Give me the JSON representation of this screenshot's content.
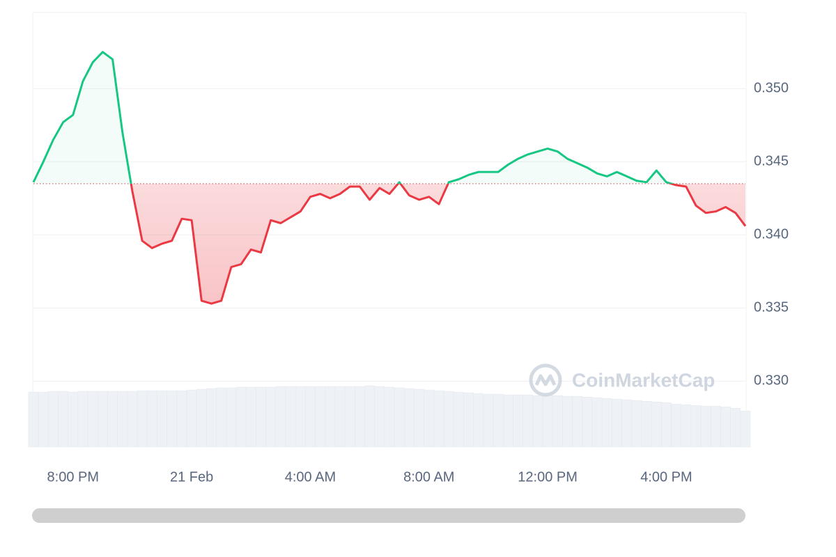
{
  "chart_data": {
    "type": "line",
    "watermark": "CoinMarketCap",
    "baseline": 0.3435,
    "up_color": "#16c784",
    "down_color": "#ea3943",
    "categories": [
      null,
      null,
      null,
      null,
      "8:00 PM",
      null,
      null,
      null,
      null,
      null,
      null,
      null,
      null,
      null,
      null,
      null,
      "21 Feb",
      null,
      null,
      null,
      null,
      null,
      null,
      null,
      null,
      null,
      null,
      null,
      "4:00 AM",
      null,
      null,
      null,
      null,
      null,
      null,
      null,
      null,
      null,
      null,
      null,
      "8:00 AM",
      null,
      null,
      null,
      null,
      null,
      null,
      null,
      null,
      null,
      null,
      null,
      "12:00 PM",
      null,
      null,
      null,
      null,
      null,
      null,
      null,
      null,
      null,
      null,
      null,
      "4:00 PM",
      null,
      null,
      null,
      null,
      null,
      null,
      null,
      null
    ],
    "values": [
      0.3436,
      0.345,
      0.3465,
      0.3477,
      0.3482,
      0.3505,
      0.3518,
      0.3525,
      0.352,
      0.347,
      0.343,
      0.3396,
      0.3391,
      0.3394,
      0.3396,
      0.3411,
      0.341,
      0.3355,
      0.3353,
      0.3355,
      0.3378,
      0.338,
      0.339,
      0.3388,
      0.341,
      0.3408,
      0.3412,
      0.3416,
      0.3426,
      0.3428,
      0.3425,
      0.3428,
      0.3433,
      0.3433,
      0.3424,
      0.3432,
      0.3428,
      0.3436,
      0.3427,
      0.3424,
      0.3426,
      0.3421,
      0.3436,
      0.3438,
      0.3441,
      0.3443,
      0.3443,
      0.3443,
      0.3448,
      0.3452,
      0.3455,
      0.3457,
      0.3459,
      0.3457,
      0.3452,
      0.3449,
      0.3446,
      0.3442,
      0.344,
      0.3443,
      0.344,
      0.3437,
      0.3436,
      0.3444,
      0.3436,
      0.3434,
      0.3433,
      0.342,
      0.3415,
      0.3416,
      0.3419,
      0.3415,
      0.3406
    ],
    "volume": [
      78,
      78,
      79,
      79,
      78,
      79,
      79,
      79,
      79,
      79,
      79,
      80,
      80,
      80,
      80,
      80,
      81,
      82,
      83,
      84,
      84,
      85,
      85,
      85,
      85,
      86,
      86,
      86,
      86,
      86,
      86,
      86,
      86,
      86,
      87,
      86,
      85,
      84,
      83,
      82,
      81,
      80,
      79,
      78,
      77,
      76,
      75,
      75,
      74,
      74,
      74,
      73,
      73,
      73,
      72,
      72,
      71,
      70,
      69,
      68,
      67,
      66,
      65,
      64,
      63,
      61,
      60,
      59,
      58,
      58,
      57,
      55,
      51
    ],
    "ylim": [
      0.3255,
      0.3552
    ],
    "yticks": [
      {
        "value": 0.33,
        "label": "0.330"
      },
      0.335,
      {
        "value": 0.34,
        "label": "0.340"
      },
      0.345,
      {
        "value": 0.35,
        "label": "0.350"
      }
    ],
    "grid": true
  }
}
